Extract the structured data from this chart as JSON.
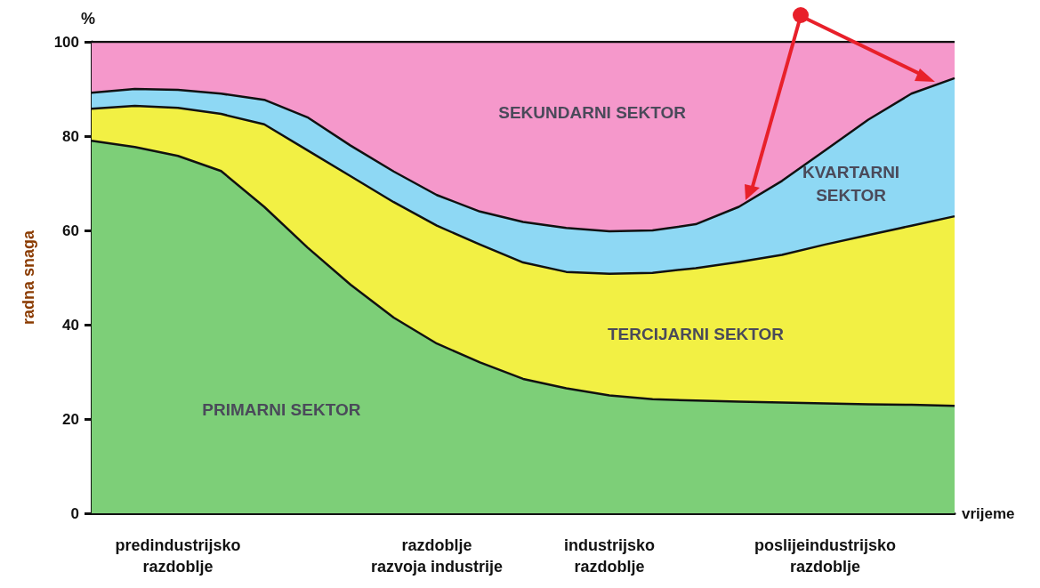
{
  "chart_data": {
    "type": "area",
    "stacked": true,
    "xlabel": "vrijeme",
    "ylabel": "radna snaga",
    "annotations": [
      "%"
    ],
    "categories": [
      null,
      null,
      "predindustrijsko\nrazdoblje",
      null,
      null,
      null,
      null,
      null,
      "razdoblje\nrazvoja industrije",
      null,
      null,
      null,
      "industrijsko\nrazdoblje",
      null,
      null,
      null,
      null,
      "poslijeindustrijsko\nrazdoblje",
      null,
      null,
      null
    ],
    "ylim": [
      0,
      100
    ],
    "yticks": [
      0,
      20,
      40,
      60,
      80,
      100
    ],
    "legend": false,
    "series": [
      {
        "name": "PRIMARNI SEKTOR",
        "color": "#7dcf78",
        "values": [
          79,
          77.7,
          75.8,
          72.6,
          65,
          56.4,
          48.5,
          41.5,
          36,
          32,
          28.5,
          26.5,
          25,
          24.2,
          23.9,
          23.7,
          23.5,
          23.3,
          23.1,
          23,
          22.8
        ]
      },
      {
        "name": "TERCIJARNI SEKTOR",
        "color": "#f2f044",
        "values": [
          6.8,
          8.7,
          10.2,
          12.1,
          17.5,
          20.6,
          23,
          24.5,
          25,
          25,
          24.7,
          24.7,
          25.8,
          26.8,
          28.1,
          29.6,
          31.3,
          33.7,
          35.9,
          38,
          40.2
        ]
      },
      {
        "name": "KVARTARNI\nSEKTOR",
        "color": "#8ed8f4",
        "values": [
          3.4,
          3.6,
          3.8,
          4.3,
          5.2,
          7,
          6.5,
          6.5,
          6.5,
          7,
          8.6,
          9.3,
          9,
          9,
          9.3,
          11.7,
          15.7,
          20,
          24.5,
          28,
          29.3
        ]
      },
      {
        "name": "SEKUNDARNI SEKTOR",
        "color": "#f598cb",
        "values": [
          10.8,
          10,
          10.2,
          11,
          12.3,
          16,
          22,
          27.5,
          32.5,
          36,
          38.2,
          39.5,
          40.2,
          40,
          38.7,
          35,
          29.5,
          23,
          16.5,
          11,
          7.7
        ]
      }
    ]
  }
}
